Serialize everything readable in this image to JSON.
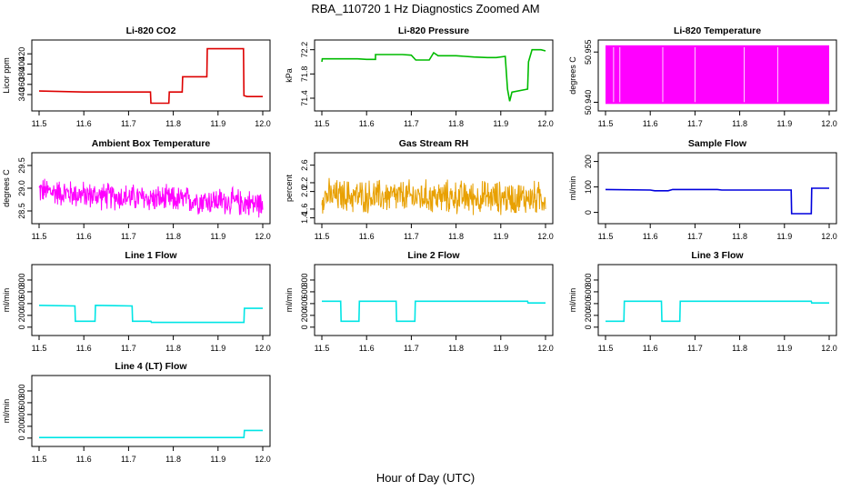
{
  "page": {
    "title": "RBA_110720  1 Hz Diagnostics Zoomed AM",
    "xlabel": "Hour of Day (UTC)"
  },
  "chart_data": [
    {
      "type": "line",
      "title": "Li-820 CO2",
      "ylabel": "Licor ppm",
      "color": "#dd0000",
      "xlim": [
        11.5,
        12.0
      ],
      "x_ticks": [
        "11.5",
        "11.6",
        "11.7",
        "11.8",
        "11.9",
        "12.0"
      ],
      "ylim": [
        315,
        440
      ],
      "y_ticks": [
        "340",
        "360",
        "380",
        "400",
        "420"
      ],
      "series": [
        {
          "x": [
            11.5,
            11.6,
            11.7,
            11.749,
            11.75,
            11.79,
            11.791,
            11.82,
            11.821,
            11.835,
            11.836,
            11.875,
            11.876,
            11.957,
            11.958,
            11.965,
            12.0
          ],
          "y": [
            347,
            345,
            345,
            345,
            323,
            323,
            345,
            345,
            375,
            375,
            375,
            375,
            430,
            430,
            338,
            336,
            336
          ]
        }
      ]
    },
    {
      "type": "line",
      "title": "Li-820 Pressure",
      "ylabel": "kPa",
      "color": "#00bb00",
      "xlim": [
        11.5,
        12.0
      ],
      "x_ticks": [
        "11.5",
        "11.6",
        "11.7",
        "11.8",
        "11.9",
        "12.0"
      ],
      "ylim": [
        71.25,
        72.3
      ],
      "y_ticks": [
        "71.4",
        "71.8",
        "72.2"
      ],
      "series": [
        {
          "x": [
            11.5,
            11.501,
            11.58,
            11.6,
            11.62,
            11.62,
            11.68,
            11.7,
            11.71,
            11.74,
            11.75,
            11.76,
            11.8,
            11.84,
            11.87,
            11.89,
            11.91,
            11.915,
            11.92,
            11.925,
            11.96,
            11.962,
            11.97,
            11.99,
            12.0
          ],
          "y": [
            72.0,
            72.05,
            72.05,
            72.04,
            72.04,
            72.12,
            72.12,
            72.11,
            72.03,
            72.03,
            72.15,
            72.1,
            72.1,
            72.08,
            72.07,
            72.07,
            72.09,
            71.55,
            71.35,
            71.5,
            71.55,
            72.0,
            72.2,
            72.2,
            72.18
          ]
        }
      ]
    },
    {
      "type": "line",
      "title": "Li-820 Temperature",
      "ylabel": "degrees C",
      "color": "#ff00ff",
      "xlim": [
        11.5,
        12.0
      ],
      "x_ticks": [
        "11.5",
        "11.6",
        "11.7",
        "11.8",
        "11.9",
        "12.0"
      ],
      "ylim": [
        50.9385,
        50.9575
      ],
      "y_ticks": [
        "50.940",
        "50.955"
      ],
      "pattern": "square_oscillation",
      "series": [
        {
          "low": 50.9395,
          "high": 50.957
        }
      ]
    },
    {
      "type": "line",
      "title": "Ambient Box Temperature",
      "ylabel": "degrees C",
      "color": "#ff00ff",
      "xlim": [
        11.5,
        12.0
      ],
      "x_ticks": [
        "11.5",
        "11.6",
        "11.7",
        "11.8",
        "11.9",
        "12.0"
      ],
      "ylim": [
        28.3,
        29.7
      ],
      "y_ticks": [
        "28.5",
        "29.0",
        "29.5"
      ],
      "pattern": "noise",
      "series": [
        {
          "trend": [
            [
              11.5,
              28.95
            ],
            [
              11.6,
              28.85
            ],
            [
              11.7,
              28.8
            ],
            [
              11.8,
              28.75
            ],
            [
              11.9,
              28.72
            ],
            [
              12.0,
              28.65
            ]
          ],
          "noise_amplitude": 0.35
        }
      ]
    },
    {
      "type": "line",
      "title": "Gas Stream RH",
      "ylabel": "percent",
      "color": "#e8a000",
      "xlim": [
        11.5,
        12.0
      ],
      "x_ticks": [
        "11.5",
        "11.6",
        "11.7",
        "11.8",
        "11.9",
        "12.0"
      ],
      "ylim": [
        1.35,
        2.8
      ],
      "y_ticks": [
        "1.4",
        "1.6",
        "2.0",
        "2.2",
        "2.6"
      ],
      "pattern": "noise",
      "series": [
        {
          "trend": [
            [
              11.5,
              1.9
            ],
            [
              12.0,
              1.85
            ]
          ],
          "noise_amplitude": 0.45
        }
      ]
    },
    {
      "type": "line",
      "title": "Sample Flow",
      "ylabel": "ml/min",
      "color": "#0000dd",
      "xlim": [
        11.5,
        12.0
      ],
      "x_ticks": [
        "11.5",
        "11.6",
        "11.7",
        "11.8",
        "11.9",
        "12.0"
      ],
      "ylim": [
        -30,
        220
      ],
      "y_ticks": [
        "0",
        "100",
        "200"
      ],
      "series": [
        {
          "x": [
            11.5,
            11.6,
            11.61,
            11.64,
            11.65,
            11.75,
            11.76,
            11.9,
            11.915,
            11.916,
            11.95,
            11.951,
            11.96,
            11.961,
            12.0
          ],
          "y": [
            90,
            88,
            85,
            85,
            90,
            90,
            88,
            88,
            88,
            -5,
            -5,
            -5,
            -5,
            95,
            95
          ]
        }
      ]
    },
    {
      "type": "line",
      "title": "Line 1 Flow",
      "ylabel": "ml/min",
      "color": "#00e5e5",
      "xlim": [
        11.5,
        12.0
      ],
      "x_ticks": [
        "11.5",
        "11.6",
        "11.7",
        "11.8",
        "11.9",
        "12.0"
      ],
      "ylim": [
        -80,
        1000
      ],
      "y_ticks": [
        "0",
        "200",
        "400",
        "600",
        "800"
      ],
      "series": [
        {
          "x": [
            11.5,
            11.58,
            11.581,
            11.625,
            11.626,
            11.708,
            11.709,
            11.75,
            11.751,
            11.958,
            11.959,
            12.0
          ],
          "y": [
            370,
            360,
            100,
            100,
            370,
            360,
            100,
            100,
            80,
            80,
            320,
            320
          ]
        }
      ]
    },
    {
      "type": "line",
      "title": "Line 2 Flow",
      "ylabel": "ml/min",
      "color": "#00e5e5",
      "xlim": [
        11.5,
        12.0
      ],
      "x_ticks": [
        "11.5",
        "11.6",
        "11.7",
        "11.8",
        "11.9",
        "12.0"
      ],
      "ylim": [
        -80,
        1000
      ],
      "y_ticks": [
        "0",
        "200",
        "400",
        "600",
        "800"
      ],
      "series": [
        {
          "x": [
            11.5,
            11.542,
            11.543,
            11.583,
            11.584,
            11.666,
            11.667,
            11.708,
            11.709,
            11.96,
            11.961,
            12.0
          ],
          "y": [
            440,
            440,
            100,
            100,
            440,
            440,
            100,
            100,
            440,
            440,
            410,
            410
          ]
        }
      ]
    },
    {
      "type": "line",
      "title": "Line 3 Flow",
      "ylabel": "ml/min",
      "color": "#00e5e5",
      "xlim": [
        11.5,
        12.0
      ],
      "x_ticks": [
        "11.5",
        "11.6",
        "11.7",
        "11.8",
        "11.9",
        "12.0"
      ],
      "ylim": [
        -80,
        1000
      ],
      "y_ticks": [
        "0",
        "200",
        "400",
        "600",
        "800"
      ],
      "series": [
        {
          "x": [
            11.5,
            11.541,
            11.542,
            11.625,
            11.626,
            11.666,
            11.667,
            11.96,
            11.961,
            12.0
          ],
          "y": [
            100,
            100,
            440,
            440,
            100,
            100,
            440,
            440,
            410,
            410
          ]
        }
      ]
    },
    {
      "type": "line",
      "title": "Line 4 (LT) Flow",
      "ylabel": "ml/min",
      "color": "#00e5e5",
      "xlim": [
        11.5,
        12.0
      ],
      "x_ticks": [
        "11.5",
        "11.6",
        "11.7",
        "11.8",
        "11.9",
        "12.0"
      ],
      "ylim": [
        -80,
        1000
      ],
      "y_ticks": [
        "0",
        "200",
        "400",
        "600",
        "800"
      ],
      "series": [
        {
          "x": [
            11.5,
            11.958,
            11.959,
            12.0
          ],
          "y": [
            10,
            10,
            130,
            130
          ]
        }
      ]
    }
  ]
}
